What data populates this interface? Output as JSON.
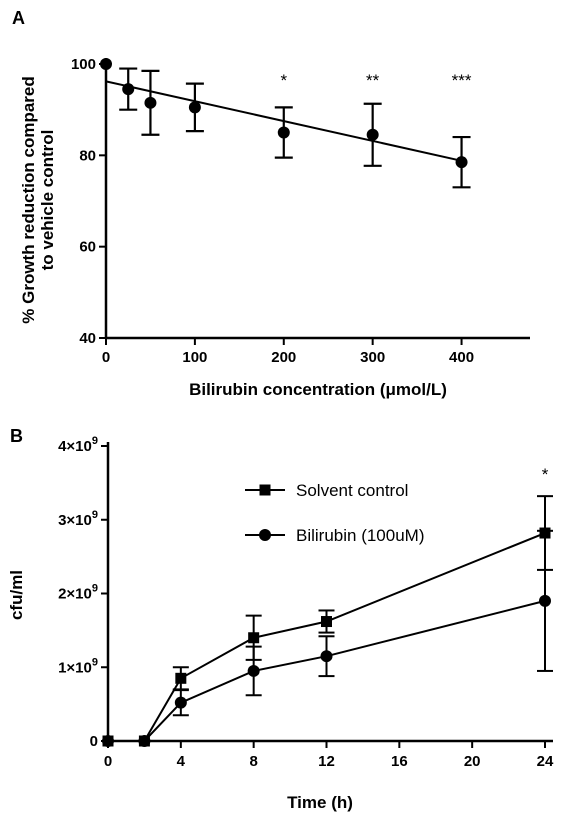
{
  "chart_data": [
    {
      "panel": "A",
      "type": "scatter",
      "xlabel": "Bilirubin concentration (μmol/L)",
      "ylabel": "% Growth reduction compared\nto vehicle control",
      "xlim": [
        0,
        450
      ],
      "ylim": [
        40,
        100
      ],
      "xticks": [
        0,
        100,
        200,
        300,
        400
      ],
      "yticks": [
        40,
        60,
        80,
        100
      ],
      "points": [
        {
          "x": 0,
          "y": 100,
          "err": 0
        },
        {
          "x": 25,
          "y": 94.5,
          "err": 4.5
        },
        {
          "x": 50,
          "y": 91.5,
          "err": 7
        },
        {
          "x": 100,
          "y": 90.5,
          "err": 5.2
        },
        {
          "x": 200,
          "y": 85,
          "err": 5.5
        },
        {
          "x": 300,
          "y": 84.5,
          "err": 6.8
        },
        {
          "x": 400,
          "y": 78.5,
          "err": 5.5
        }
      ],
      "fit_line": {
        "x": [
          0,
          400
        ],
        "y": [
          96.2,
          78.8
        ]
      },
      "annotations": [
        {
          "x": 200,
          "text": "*"
        },
        {
          "x": 300,
          "text": "**"
        },
        {
          "x": 400,
          "text": "***"
        }
      ],
      "grid": false
    },
    {
      "panel": "B",
      "type": "line",
      "xlabel": "Time (h)",
      "ylabel": "cfu/ml",
      "xlim": [
        0,
        24
      ],
      "ylim": [
        0,
        4
      ],
      "y_multiplier": "×10",
      "y_exponent": "9",
      "xticks": [
        0,
        4,
        8,
        12,
        16,
        20,
        24
      ],
      "yticks": [
        {
          "value": 0,
          "mantissa": "0",
          "exp": ""
        },
        {
          "value": 1,
          "mantissa": "1",
          "exp": "9"
        },
        {
          "value": 2,
          "mantissa": "2",
          "exp": "9"
        },
        {
          "value": 3,
          "mantissa": "3",
          "exp": "9"
        },
        {
          "value": 4,
          "mantissa": "4",
          "exp": "9"
        }
      ],
      "series": [
        {
          "name": "Solvent control",
          "marker": "square",
          "x": [
            0,
            2,
            4,
            8,
            12,
            24
          ],
          "y": [
            0,
            0,
            0.85,
            1.4,
            1.62,
            2.82
          ],
          "err": [
            0,
            0,
            0.15,
            0.3,
            0.15,
            0.5
          ]
        },
        {
          "name": "Bilirubin (100uM)",
          "marker": "circle",
          "x": [
            0,
            2,
            4,
            8,
            12,
            24
          ],
          "y": [
            0,
            0,
            0.52,
            0.95,
            1.15,
            1.9
          ],
          "err": [
            0,
            0,
            0.17,
            0.33,
            0.27,
            0.95
          ]
        }
      ],
      "annotations": [
        {
          "x": 24,
          "text": "*"
        }
      ],
      "legend_position": "top-center",
      "grid": false
    }
  ]
}
